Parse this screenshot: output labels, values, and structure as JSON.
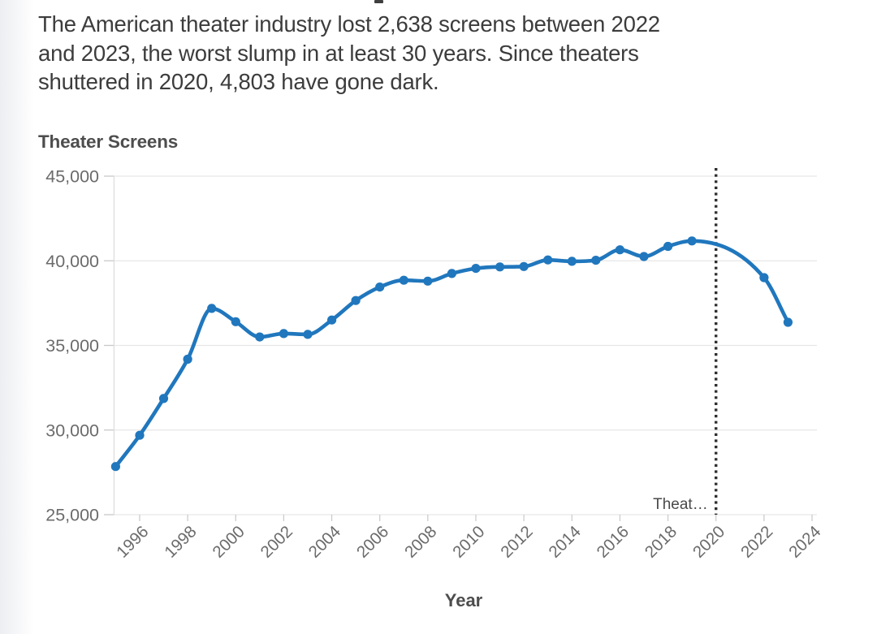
{
  "subtitle_lines": [
    "The American theater industry lost 2,638 screens between 2022",
    "and 2023, the worst slump in at least 30 years. Since theaters",
    "shuttered in 2020, 4,803 have gone dark."
  ],
  "chart_data": {
    "type": "line",
    "title": "Theater Screens",
    "xlabel": "Year",
    "ylabel": "Theater Screens",
    "x": [
      1995,
      1996,
      1997,
      1998,
      1999,
      2000,
      2001,
      2002,
      2003,
      2004,
      2005,
      2006,
      2007,
      2008,
      2009,
      2010,
      2011,
      2012,
      2013,
      2014,
      2015,
      2016,
      2017,
      2018,
      2019,
      2022,
      2023
    ],
    "y": [
      27843,
      29690,
      31865,
      34186,
      37185,
      36400,
      35500,
      35700,
      35650,
      36500,
      37650,
      38450,
      38850,
      38800,
      39250,
      39550,
      39640,
      39660,
      40050,
      39970,
      40030,
      40650,
      40250,
      40850,
      41172,
      39007,
      36369
    ],
    "xlim": [
      1995,
      2024
    ],
    "ylim": [
      25000,
      45000
    ],
    "yticks": [
      25000,
      30000,
      35000,
      40000,
      45000
    ],
    "ytick_labels": [
      "25,000",
      "30,000",
      "35,000",
      "40,000",
      "45,000"
    ],
    "xticks": [
      1996,
      1998,
      2000,
      2002,
      2004,
      2006,
      2008,
      2010,
      2012,
      2014,
      2016,
      2018,
      2020,
      2022,
      2024
    ],
    "grid": "horizontal",
    "legend": "none",
    "line_color": "#2077bd",
    "marker": "circle",
    "curve": "monotone",
    "event_line": {
      "x": 2020,
      "style": "dotted",
      "color": "#2e2e2e",
      "label": "Theat…"
    },
    "axis_text_color": "#6b6b6b",
    "grid_color": "#e7e7e7"
  }
}
